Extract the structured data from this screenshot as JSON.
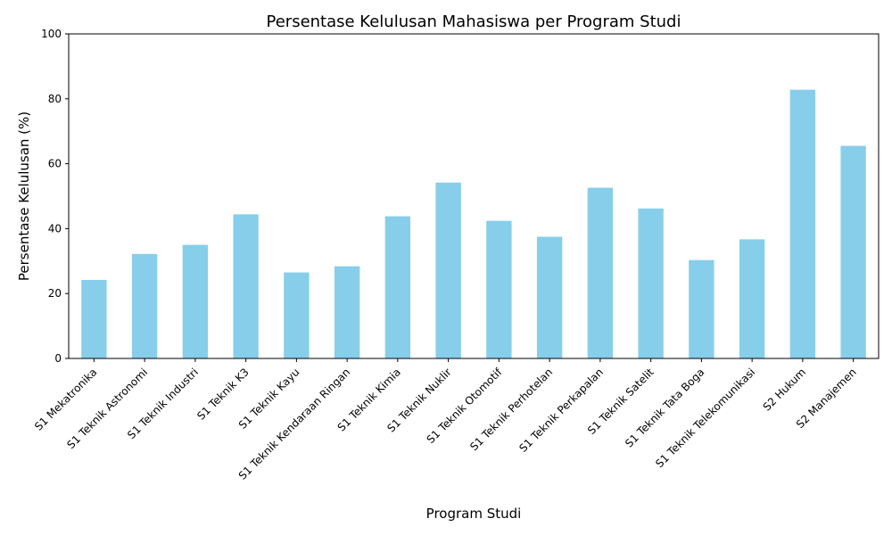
{
  "chart_data": {
    "type": "bar",
    "title": "Persentase Kelulusan Mahasiswa per Program Studi",
    "xlabel": "Program Studi",
    "ylabel": "Persentase Kelulusan (%)",
    "ylim": [
      0,
      100
    ],
    "yticks": [
      0,
      20,
      40,
      60,
      80,
      100
    ],
    "grid": false,
    "bar_color": "#87ceeb",
    "categories": [
      "S1 Mekatronika",
      "S1 Teknik Astronomi",
      "S1 Teknik Industri",
      "S1 Teknik K3",
      "S1 Teknik Kayu",
      "S1 Teknik Kendaraan Ringan",
      "S1 Teknik Kimia",
      "S1 Teknik Nuklir",
      "S1 Teknik Otomotif",
      "S1 Teknik Perhotelan",
      "S1 Teknik Perkapalan",
      "S1 Teknik Satelit",
      "S1 Teknik Tata Boga",
      "S1 Teknik Telekomunikasi",
      "S2 Hukum",
      "S2 Manajemen"
    ],
    "values": [
      24.2,
      32.2,
      35.0,
      44.4,
      26.5,
      28.4,
      43.8,
      54.2,
      42.4,
      37.5,
      52.6,
      46.2,
      30.3,
      36.7,
      82.8,
      65.5
    ]
  }
}
